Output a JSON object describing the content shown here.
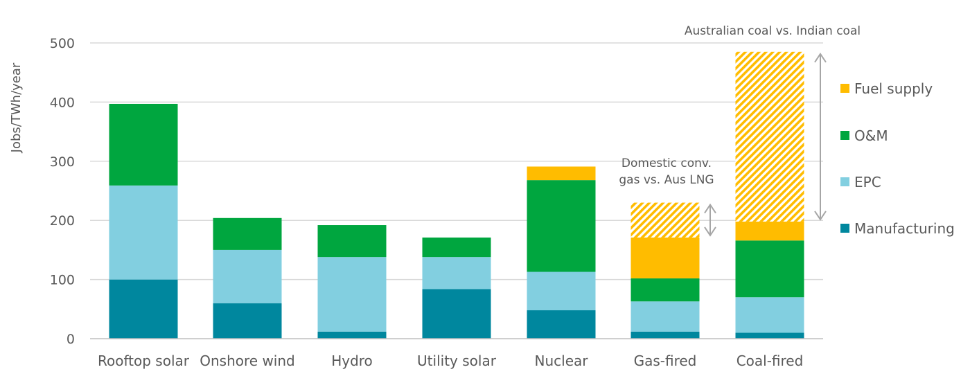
{
  "chart_data": {
    "type": "bar",
    "stacked": true,
    "ylabel": "Jobs/TWh/year",
    "xlabel": "",
    "ylim": [
      0,
      500
    ],
    "yticks": [
      0,
      100,
      200,
      300,
      400,
      500
    ],
    "grid": true,
    "legend_position": "right",
    "categories": [
      "Rooftop solar",
      "Onshore wind",
      "Hydro",
      "Utility solar",
      "Nuclear",
      "Gas-fired",
      "Coal-fired"
    ],
    "series": [
      {
        "name": "Manufacturing",
        "color": "#00879e",
        "values": [
          100,
          60,
          12,
          84,
          48,
          12,
          10
        ]
      },
      {
        "name": "EPC",
        "color": "#82cfe0",
        "values": [
          159,
          90,
          126,
          54,
          65,
          51,
          60
        ]
      },
      {
        "name": "O&M",
        "color": "#00a63f",
        "values": [
          138,
          54,
          54,
          33,
          155,
          39,
          96
        ]
      },
      {
        "name": "Fuel supply",
        "color": "#ffbc00",
        "values": [
          0,
          0,
          0,
          0,
          23,
          69,
          32
        ]
      }
    ],
    "hatched_ranges": [
      {
        "category": "Gas-fired",
        "from": 171,
        "to": 230,
        "color": "#ffbc00"
      },
      {
        "category": "Coal-fired",
        "from": 198,
        "to": 485,
        "color": "#ffbc00"
      }
    ],
    "range_arrows": [
      {
        "category": "Gas-fired",
        "from": 171,
        "to": 230
      },
      {
        "category": "Coal-fired",
        "from": 198,
        "to": 485
      }
    ],
    "annotations": [
      {
        "id": "coal",
        "lines": [
          "Australian coal vs. Indian coal"
        ]
      },
      {
        "id": "gas",
        "lines": [
          "Domestic conv.",
          "gas vs. Aus LNG"
        ]
      }
    ]
  }
}
